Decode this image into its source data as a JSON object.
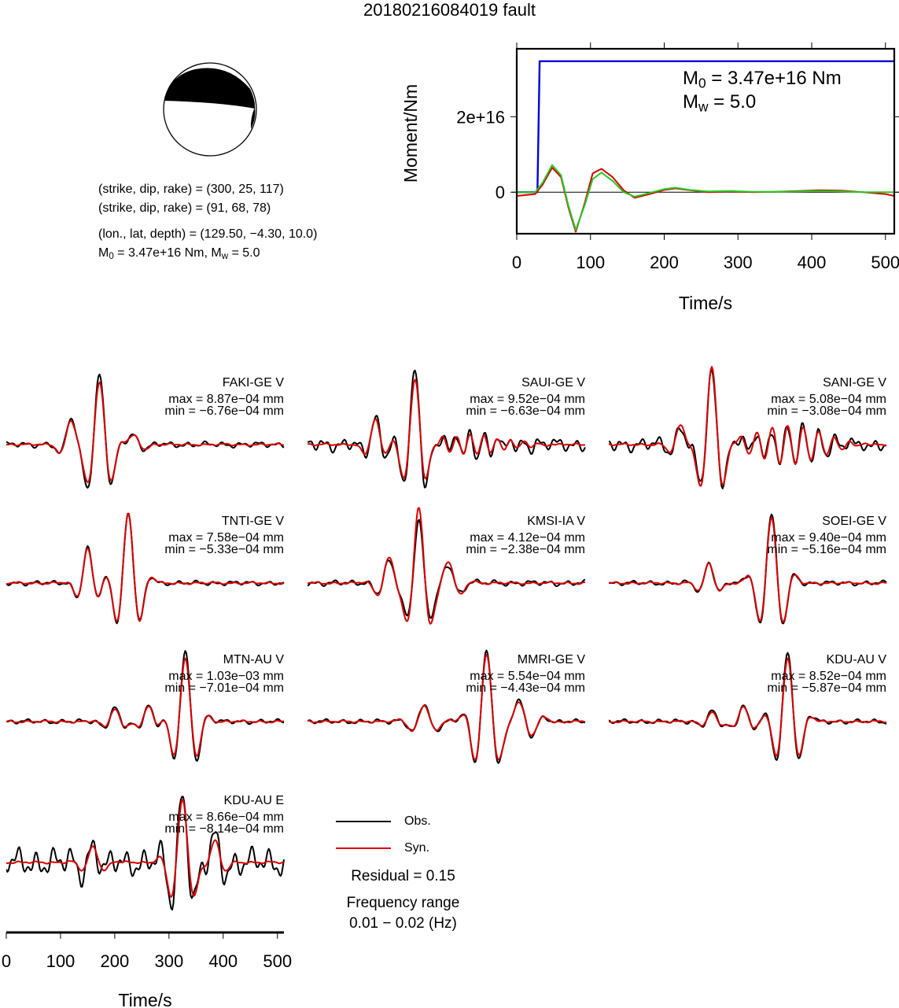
{
  "page_title": "20180216084019 fault",
  "colors": {
    "observed": "#000000",
    "synthetic": "#dd0000",
    "moment_function": "#0000dd",
    "moment_rate_red": "#dd0000",
    "moment_rate_green": "#22cc22"
  },
  "beachball": {
    "compressional_fill": "#000000",
    "dilatational_fill": "#ffffff"
  },
  "info": {
    "line1": "(strike, dip, rake) = (300, 25, 117)",
    "line2": "(strike, dip, rake) = (91, 68, 78)",
    "line3": "(lon., lat, depth) = (129.50, −4.30, 10.0)",
    "line4": {
      "m0_label": "M",
      "m0_sub": "0",
      "m0_value": " = 3.47e+16 Nm, M",
      "mw_sub": "w",
      "mw_value": " = 5.0"
    }
  },
  "moment_annotation": {
    "m0_label": "M",
    "m0_sub": "0",
    "m0_value": " = 3.47e+16 Nm",
    "mw_label": "M",
    "mw_sub": "w",
    "mw_value": " = 5.0"
  },
  "chart_data": [
    {
      "type": "line",
      "title": "",
      "xlabel": "Time/s",
      "ylabel": "Moment/Nm",
      "xlim": [
        0,
        512
      ],
      "ylim": [
        -1.1e+16,
        3.8e+16
      ],
      "xticks": [
        "0",
        "100",
        "200",
        "300",
        "400",
        "500"
      ],
      "yticks": [
        "0",
        "2e+16"
      ],
      "ytick_values": [
        0,
        2e+16
      ],
      "series": [
        {
          "color": "#0000dd",
          "x": [
            0,
            28,
            31,
            512
          ],
          "y": [
            0,
            0,
            3.47e+16,
            3.47e+16
          ]
        },
        {
          "color": "#dd0000",
          "x": [
            0,
            25,
            35,
            48,
            60,
            70,
            80,
            92,
            103,
            115,
            130,
            145,
            160,
            180,
            200,
            215,
            235,
            260,
            290,
            320,
            350,
            380,
            410,
            440,
            470,
            500,
            512
          ],
          "y": [
            -1000000000000000.0,
            -500000000000000.0,
            2000000000000000.0,
            6500000000000000.0,
            4000000000000000.0,
            -4000000000000000.0,
            -1.05e+16,
            -3000000000000000.0,
            5000000000000000.0,
            6200000000000000.0,
            4000000000000000.0,
            500000000000000.0,
            -1500000000000000.0,
            -500000000000000.0,
            600000000000000.0,
            1000000000000000.0,
            500000000000000.0,
            0.0,
            200000000000000.0,
            0.0,
            100000000000000.0,
            300000000000000.0,
            500000000000000.0,
            400000000000000.0,
            0.0,
            -500000000000000.0,
            -1000000000000000.0
          ]
        },
        {
          "color": "#22cc22",
          "x": [
            0,
            25,
            35,
            48,
            60,
            70,
            80,
            92,
            103,
            115,
            130,
            145,
            160,
            180,
            200,
            215,
            235,
            260,
            290,
            320,
            350,
            380,
            410,
            440,
            470,
            500,
            512
          ],
          "y": [
            0.0,
            0.0,
            2500000000000000.0,
            7200000000000000.0,
            4500000000000000.0,
            -3500000000000000.0,
            -1e+16,
            -3500000000000000.0,
            3500000000000000.0,
            5200000000000000.0,
            3000000000000000.0,
            0.0,
            -1200000000000000.0,
            -200000000000000.0,
            800000000000000.0,
            1200000000000000.0,
            600000000000000.0,
            200000000000000.0,
            300000000000000.0,
            100000000000000.0,
            100000000000000.0,
            200000000000000.0,
            300000000000000.0,
            200000000000000.0,
            0.0,
            0.0,
            0.0
          ]
        }
      ]
    },
    {
      "type": "line",
      "title": "",
      "xlabel": "Time/s",
      "xlim": [
        0,
        512
      ],
      "xticks": [
        "0",
        "100",
        "200",
        "300",
        "400",
        "500"
      ],
      "legend": [
        "Obs.",
        "Syn."
      ],
      "traces": [
        {
          "station": "FAKI-GE V",
          "max": "max = 8.87e−04 mm",
          "min": "min = −6.76e−04 mm",
          "wavelets": [
            {
              "t": 118,
              "a": 0.35,
              "w": 10,
              "f": 0.021
            },
            {
              "t": 172,
              "a": 1.0,
              "w": 14,
              "f": 0.021
            },
            {
              "t": 235,
              "a": 0.15,
              "w": 12,
              "f": 0.02
            }
          ],
          "obs_noise": 0.05,
          "syn_scale": 0.9
        },
        {
          "station": "SAUI-GE V",
          "max": "max = 9.52e−04 mm",
          "min": "min = −6.63e−04 mm",
          "wavelets": [
            {
              "t": 125,
              "a": 0.4,
              "w": 10,
              "f": 0.021
            },
            {
              "t": 198,
              "a": 1.0,
              "w": 13,
              "f": 0.021
            },
            {
              "t": 300,
              "a": 0.15,
              "w": 40,
              "f": 0.04
            }
          ],
          "obs_noise": 0.12,
          "syn_scale": 0.9
        },
        {
          "station": "SANI-GE V",
          "max": "max = 5.08e−04 mm",
          "min": "min = −3.08e−04 mm",
          "wavelets": [
            {
              "t": 132,
              "a": 0.25,
              "w": 10,
              "f": 0.021
            },
            {
              "t": 190,
              "a": 1.0,
              "w": 13,
              "f": 0.021
            },
            {
              "t": 330,
              "a": 0.25,
              "w": 40,
              "f": 0.035
            }
          ],
          "obs_noise": 0.12,
          "syn_scale": 1.1
        },
        {
          "station": "TNTI-GE V",
          "max": "max = 7.58e−04 mm",
          "min": "min = −5.33e−04 mm",
          "wavelets": [
            {
              "t": 150,
              "a": 0.5,
              "w": 10,
              "f": 0.021
            },
            {
              "t": 225,
              "a": 1.0,
              "w": 13,
              "f": 0.021
            }
          ],
          "obs_noise": 0.04,
          "syn_scale": 1.0
        },
        {
          "station": "KMSI-IA V",
          "max": "max = 4.12e−04 mm",
          "min": "min = −2.38e−04 mm",
          "wavelets": [
            {
              "t": 150,
              "a": 0.3,
              "w": 12,
              "f": 0.02
            },
            {
              "t": 205,
              "a": 0.9,
              "w": 12,
              "f": 0.021
            },
            {
              "t": 260,
              "a": 0.25,
              "w": 14,
              "f": 0.02
            }
          ],
          "obs_noise": 0.05,
          "syn_scale": 1.2
        },
        {
          "station": "SOEI-GE V",
          "max": "max = 9.40e−04 mm",
          "min": "min = −5.16e−04 mm",
          "wavelets": [
            {
              "t": 185,
              "a": 0.3,
              "w": 10,
              "f": 0.021
            },
            {
              "t": 300,
              "a": 1.0,
              "w": 14,
              "f": 0.021
            }
          ],
          "obs_noise": 0.04,
          "syn_scale": 0.95
        },
        {
          "station": "MTN-AU V",
          "max": "max = 1.03e−03 mm",
          "min": "min = −7.01e−04 mm",
          "wavelets": [
            {
              "t": 200,
              "a": 0.2,
              "w": 10,
              "f": 0.021
            },
            {
              "t": 262,
              "a": 0.25,
              "w": 10,
              "f": 0.021
            },
            {
              "t": 330,
              "a": 1.0,
              "w": 13,
              "f": 0.021
            }
          ],
          "obs_noise": 0.04,
          "syn_scale": 0.9
        },
        {
          "station": "MMRI-GE V",
          "max": "max = 5.54e−04 mm",
          "min": "min = −4.43e−04 mm",
          "wavelets": [
            {
              "t": 215,
              "a": 0.25,
              "w": 14,
              "f": 0.02
            },
            {
              "t": 330,
              "a": 1.0,
              "w": 14,
              "f": 0.021
            },
            {
              "t": 390,
              "a": 0.3,
              "w": 18,
              "f": 0.02
            }
          ],
          "obs_noise": 0.04,
          "syn_scale": 0.95
        },
        {
          "station": "KDU-AU V",
          "max": "max = 8.52e−04 mm",
          "min": "min = −5.87e−04 mm",
          "wavelets": [
            {
              "t": 190,
              "a": 0.15,
              "w": 10,
              "f": 0.021
            },
            {
              "t": 248,
              "a": 0.25,
              "w": 10,
              "f": 0.021
            },
            {
              "t": 330,
              "a": 1.0,
              "w": 13,
              "f": 0.021
            }
          ],
          "obs_noise": 0.04,
          "syn_scale": 0.9
        },
        {
          "station": "KDU-AU E",
          "max": "max = 8.66e−04 mm",
          "min": "min = −8.14e−04 mm",
          "wavelets": [
            {
              "t": 160,
              "a": 0.25,
              "w": 12,
              "f": 0.021
            },
            {
              "t": 325,
              "a": 1.0,
              "w": 13,
              "f": 0.021
            },
            {
              "t": 385,
              "a": 0.35,
              "w": 10,
              "f": 0.021
            }
          ],
          "obs_noise": 0.25,
          "syn_scale": 0.9
        }
      ]
    }
  ],
  "legend": {
    "obs_label": "Obs.",
    "syn_label": "Syn."
  },
  "residual_text": "Residual = 0.15",
  "frequency": {
    "label": "Frequency range",
    "range": "0.01 − 0.02 (Hz)"
  }
}
